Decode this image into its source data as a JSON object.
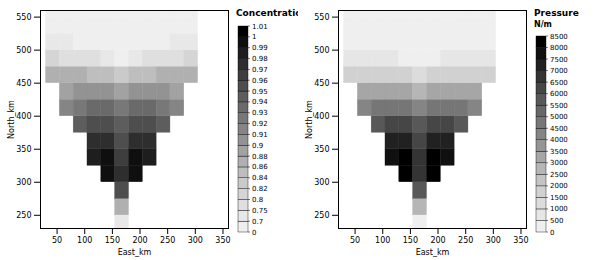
{
  "chart_data": [
    {
      "type": "heatmap",
      "x_label": "East_km",
      "y_label": "North_km",
      "xlim": [
        20,
        360
      ],
      "ylim": [
        230,
        560
      ],
      "xticks": [
        50,
        100,
        150,
        200,
        250,
        300,
        350
      ],
      "yticks": [
        250,
        300,
        350,
        400,
        450,
        500,
        550
      ],
      "x": [
        42.5,
        67.5,
        92.5,
        117.5,
        142.5,
        167.5,
        192.5,
        217.5,
        242.5,
        267.5,
        292.5
      ],
      "y": [
        237.5,
        262.5,
        287.5,
        312.5,
        337.5,
        362.5,
        387.5,
        412.5,
        437.5,
        462.5,
        487.5,
        512.5,
        537.5,
        562.5
      ],
      "cells": [
        [
          null,
          null,
          null,
          null,
          null,
          0.74,
          null,
          null,
          null,
          null,
          null
        ],
        [
          null,
          null,
          null,
          null,
          null,
          0.86,
          null,
          null,
          null,
          null,
          null
        ],
        [
          null,
          null,
          null,
          null,
          null,
          0.95,
          null,
          null,
          null,
          null,
          null
        ],
        [
          null,
          null,
          null,
          null,
          0.99,
          0.97,
          0.99,
          null,
          null,
          null,
          null
        ],
        [
          null,
          null,
          null,
          0.98,
          0.99,
          0.96,
          0.99,
          0.98,
          null,
          null,
          null
        ],
        [
          null,
          null,
          null,
          0.97,
          0.97,
          0.95,
          0.97,
          0.97,
          null,
          null,
          null
        ],
        [
          null,
          null,
          0.94,
          0.95,
          0.95,
          0.94,
          0.95,
          0.95,
          0.94,
          null,
          null
        ],
        [
          null,
          0.91,
          0.92,
          0.93,
          0.93,
          0.92,
          0.93,
          0.93,
          0.92,
          0.91,
          null
        ],
        [
          null,
          0.89,
          0.9,
          0.9,
          0.9,
          0.89,
          0.9,
          0.9,
          0.9,
          0.89,
          null
        ],
        [
          0.86,
          0.86,
          0.86,
          0.85,
          0.84,
          0.83,
          0.84,
          0.85,
          0.86,
          0.86,
          0.86
        ],
        [
          0.8,
          0.79,
          0.77,
          0.75,
          0.71,
          0,
          0.71,
          0.75,
          0.77,
          0.79,
          0.8
        ],
        [
          0.72,
          0.7,
          0,
          0,
          0,
          0,
          0,
          0,
          0,
          0.7,
          0.72
        ],
        [
          0,
          0,
          0,
          0,
          0,
          0,
          0,
          0,
          0,
          0,
          0
        ],
        [
          0,
          0,
          0,
          0,
          0,
          0,
          0,
          0,
          0,
          0,
          0
        ]
      ],
      "colorbar": {
        "title": "Concentration",
        "range": [
          0,
          1.01
        ],
        "ticks": [
          0,
          0.7,
          0.75,
          0.8,
          0.82,
          0.84,
          0.86,
          0.88,
          0.9,
          0.91,
          0.92,
          0.93,
          0.94,
          0.95,
          0.96,
          0.97,
          0.98,
          0.99,
          1,
          1.01
        ]
      }
    },
    {
      "type": "heatmap",
      "x_label": "East_km",
      "y_label": "North_km",
      "xlim": [
        20,
        360
      ],
      "ylim": [
        230,
        560
      ],
      "xticks": [
        50,
        100,
        150,
        200,
        250,
        300,
        350
      ],
      "yticks": [
        250,
        300,
        350,
        400,
        450,
        500,
        550
      ],
      "x": [
        42.5,
        67.5,
        92.5,
        117.5,
        142.5,
        167.5,
        192.5,
        217.5,
        242.5,
        267.5,
        292.5
      ],
      "y": [
        237.5,
        262.5,
        287.5,
        312.5,
        337.5,
        362.5,
        387.5,
        412.5,
        437.5,
        462.5,
        487.5,
        512.5,
        537.5,
        562.5
      ],
      "cells": [
        [
          null,
          null,
          null,
          null,
          null,
          300,
          null,
          null,
          null,
          null,
          null
        ],
        [
          null,
          null,
          null,
          null,
          null,
          2500,
          null,
          null,
          null,
          null,
          null
        ],
        [
          null,
          null,
          null,
          null,
          null,
          5500,
          null,
          null,
          null,
          null,
          null
        ],
        [
          null,
          null,
          null,
          null,
          8000,
          6500,
          8000,
          null,
          null,
          null,
          null
        ],
        [
          null,
          null,
          null,
          7500,
          8200,
          6500,
          8200,
          7500,
          null,
          null,
          null
        ],
        [
          null,
          null,
          null,
          7000,
          7200,
          6000,
          7200,
          7000,
          null,
          null,
          null
        ],
        [
          null,
          null,
          5500,
          6000,
          6200,
          5500,
          6200,
          6000,
          5500,
          null,
          null
        ],
        [
          null,
          4000,
          4500,
          4800,
          4800,
          4200,
          4800,
          4800,
          4500,
          4000,
          null
        ],
        [
          null,
          3000,
          3200,
          3300,
          3300,
          2800,
          3300,
          3300,
          3200,
          3000,
          null
        ],
        [
          1500,
          1800,
          1900,
          1900,
          1700,
          1300,
          1700,
          1900,
          1900,
          1800,
          1500
        ],
        [
          500,
          600,
          600,
          500,
          400,
          300,
          400,
          500,
          600,
          600,
          500
        ],
        [
          0,
          0,
          0,
          0,
          0,
          0,
          0,
          0,
          0,
          0,
          0
        ],
        [
          0,
          0,
          0,
          0,
          0,
          0,
          0,
          0,
          0,
          0,
          0
        ],
        [
          0,
          0,
          0,
          0,
          0,
          0,
          0,
          0,
          0,
          0,
          0
        ]
      ],
      "colorbar": {
        "title": "Pressure",
        "unit": "N/m",
        "range": [
          0,
          8500
        ],
        "ticks": [
          0,
          500,
          1000,
          1500,
          2000,
          2500,
          3000,
          3500,
          4000,
          4500,
          5000,
          5500,
          6000,
          6500,
          7000,
          7500,
          8000,
          8500
        ]
      }
    }
  ]
}
